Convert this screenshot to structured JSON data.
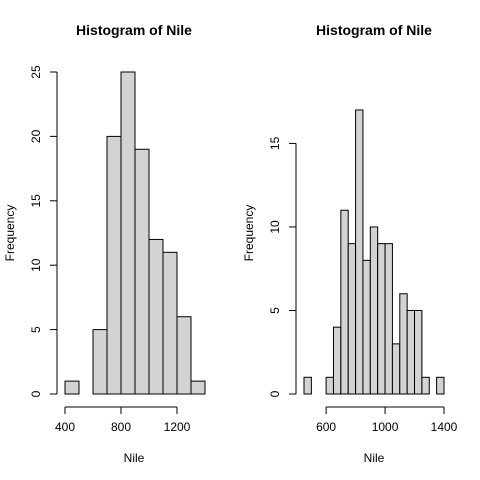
{
  "chart_data": [
    {
      "type": "bar",
      "title": "Histogram of Nile",
      "xlabel": "Nile",
      "ylabel": "Frequency",
      "bin_edges": [
        400,
        500,
        600,
        700,
        800,
        900,
        1000,
        1100,
        1200,
        1300,
        1400
      ],
      "values": [
        1,
        0,
        5,
        20,
        25,
        19,
        12,
        11,
        6,
        1
      ],
      "xlim": [
        400,
        1400
      ],
      "ylim": [
        0,
        25
      ],
      "xticks": [
        400,
        800,
        1200
      ],
      "yticks": [
        0,
        5,
        10,
        15,
        20,
        25
      ],
      "grid": false
    },
    {
      "type": "bar",
      "title": "Histogram of Nile",
      "xlabel": "Nile",
      "ylabel": "Frequency",
      "bin_edges": [
        450,
        500,
        550,
        600,
        650,
        700,
        750,
        800,
        850,
        900,
        950,
        1000,
        1050,
        1100,
        1150,
        1200,
        1250,
        1300,
        1350,
        1400
      ],
      "values": [
        1,
        0,
        0,
        1,
        4,
        11,
        9,
        17,
        8,
        10,
        9,
        9,
        3,
        6,
        5,
        5,
        1,
        0,
        1
      ],
      "xlim": [
        450,
        1400
      ],
      "ylim": [
        0,
        17
      ],
      "xticks": [
        600,
        1000,
        1400
      ],
      "yticks": [
        0,
        5,
        10,
        15
      ],
      "grid": false
    }
  ]
}
